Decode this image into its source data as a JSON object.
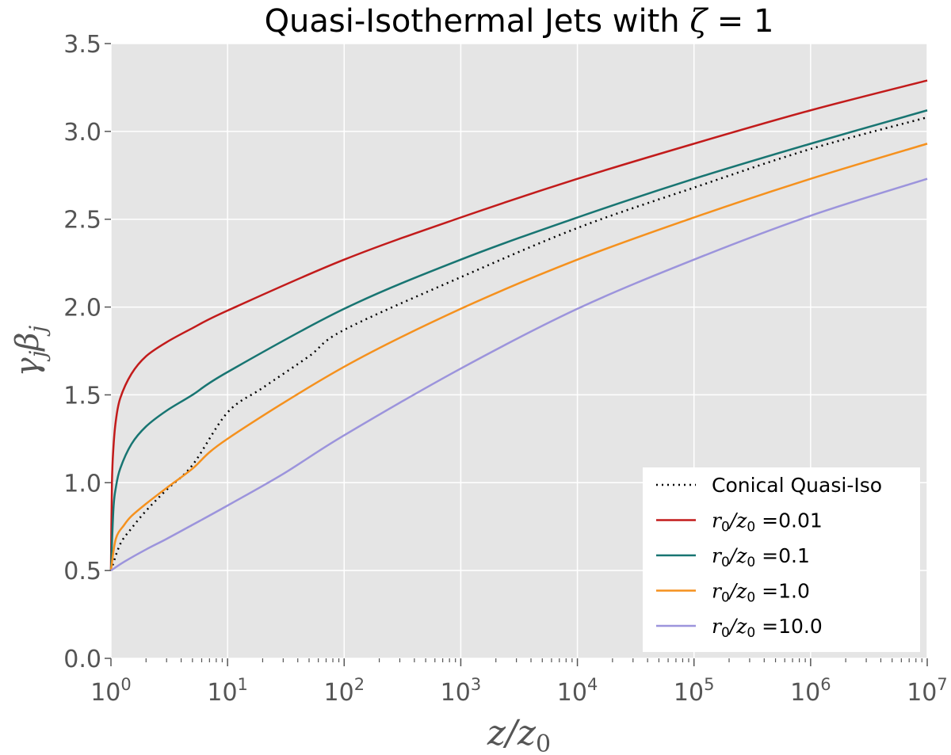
{
  "chart_data": {
    "type": "line",
    "title": "Quasi-Isothermal Jets with ζ = 1",
    "xlabel": "z/z0",
    "ylabel": "γjβj",
    "xscale": "log",
    "xlim": [
      1,
      10000000
    ],
    "ylim": [
      0.0,
      3.5
    ],
    "grid": true,
    "legend_position": "lower-right",
    "x_ticks": [
      {
        "base": "10",
        "exp": "0",
        "value": 1
      },
      {
        "base": "10",
        "exp": "1",
        "value": 10
      },
      {
        "base": "10",
        "exp": "2",
        "value": 100
      },
      {
        "base": "10",
        "exp": "3",
        "value": 1000
      },
      {
        "base": "10",
        "exp": "4",
        "value": 10000
      },
      {
        "base": "10",
        "exp": "5",
        "value": 100000
      },
      {
        "base": "10",
        "exp": "6",
        "value": 1000000
      },
      {
        "base": "10",
        "exp": "7",
        "value": 10000000
      }
    ],
    "y_ticks": [
      "0.0",
      "0.5",
      "1.0",
      "1.5",
      "2.0",
      "2.5",
      "3.0",
      "3.5"
    ],
    "legend_prefix": "r0/z0 =",
    "series": [
      {
        "name": "Conical Quasi-Iso",
        "legend_value": "",
        "color": "#000000",
        "style": "dotted",
        "x": [
          1,
          1.2,
          1.5,
          2,
          3,
          5,
          10,
          20,
          50,
          100,
          1000,
          10000,
          100000,
          1000000,
          10000000
        ],
        "y": [
          0.5,
          0.65,
          0.74,
          0.84,
          0.96,
          1.1,
          1.4,
          1.54,
          1.72,
          1.87,
          2.17,
          2.45,
          2.68,
          2.9,
          3.08
        ]
      },
      {
        "name": "r0/z0 =0.01",
        "legend_value": "0.01",
        "color": "#c21b1b",
        "style": "solid",
        "x": [
          1,
          1.02,
          1.05,
          1.1,
          1.2,
          1.5,
          2,
          3,
          5,
          10,
          100,
          1000,
          10000,
          100000,
          1000000,
          10000000
        ],
        "y": [
          0.5,
          1.0,
          1.2,
          1.35,
          1.48,
          1.62,
          1.72,
          1.8,
          1.88,
          1.98,
          2.27,
          2.51,
          2.73,
          2.93,
          3.12,
          3.29
        ]
      },
      {
        "name": "r0/z0 =0.1",
        "legend_value": "0.1",
        "color": "#187572",
        "style": "solid",
        "x": [
          1,
          1.05,
          1.1,
          1.2,
          1.5,
          2,
          3,
          5,
          10,
          100,
          1000,
          10000,
          100000,
          1000000,
          10000000
        ],
        "y": [
          0.5,
          0.85,
          0.97,
          1.08,
          1.22,
          1.32,
          1.41,
          1.5,
          1.63,
          1.99,
          2.27,
          2.51,
          2.73,
          2.93,
          3.12
        ]
      },
      {
        "name": "r0/z0 =1.0",
        "legend_value": "1.0",
        "color": "#f5911e",
        "style": "solid",
        "x": [
          1,
          1.1,
          1.3,
          1.5,
          2,
          3,
          5,
          10,
          100,
          1000,
          10000,
          100000,
          1000000,
          10000000
        ],
        "y": [
          0.5,
          0.68,
          0.76,
          0.81,
          0.88,
          0.97,
          1.08,
          1.25,
          1.66,
          1.99,
          2.27,
          2.51,
          2.73,
          2.93
        ]
      },
      {
        "name": "r0/z0 =10.0",
        "legend_value": "10.0",
        "color": "#9c94dc",
        "style": "solid",
        "x": [
          1,
          1.3,
          2,
          3,
          5,
          10,
          30,
          100,
          1000,
          10000,
          100000,
          1000000,
          10000000
        ],
        "y": [
          0.5,
          0.55,
          0.62,
          0.68,
          0.76,
          0.87,
          1.05,
          1.27,
          1.65,
          1.99,
          2.27,
          2.52,
          2.73
        ]
      }
    ]
  }
}
